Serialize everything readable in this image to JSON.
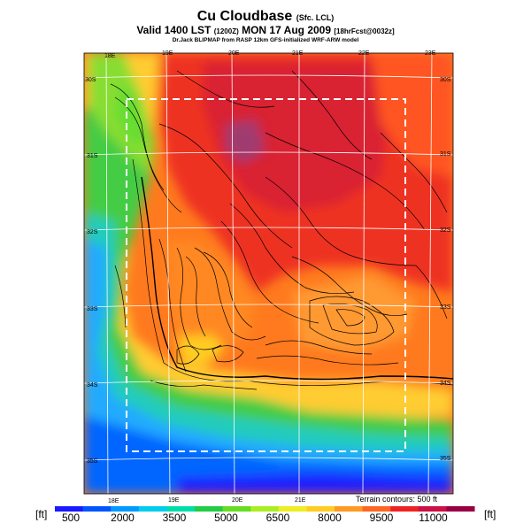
{
  "header": {
    "title": "Cu Cloudbase",
    "title_suffix": "(Sfc. LCL)",
    "valid_line": "Valid 1400 LST",
    "valid_z": "(1200Z)",
    "valid_date": "MON 17 Aug 2009",
    "forecast": "[18hrFcst@0032z]",
    "credit": "Dr.Jack BLIPMAP from RASP 12km GFS-initialized WRF-ARW model"
  },
  "map": {
    "lon_labels_top": [
      "18E",
      "19E",
      "20E",
      "21E",
      "22E",
      "23E"
    ],
    "lon_labels_bottom": [
      "18E",
      "19E",
      "20E",
      "21E"
    ],
    "lat_labels_left": [
      "30S",
      "31S",
      "32S",
      "33S",
      "34S",
      "35S"
    ],
    "lat_labels_right": [
      "30S",
      "31S",
      "32S",
      "33S",
      "34S",
      "35S"
    ],
    "terrain_note": "Terrain contours: 500 ft"
  },
  "colorbar": {
    "unit": "[ft]",
    "tick_labels": [
      "500",
      "2000",
      "3500",
      "5000",
      "6500",
      "8000",
      "9500",
      "11000"
    ],
    "colors": [
      "#1a1aff",
      "#0055ff",
      "#0099ff",
      "#00ccee",
      "#00ddaa",
      "#22cc44",
      "#66dd22",
      "#aaee22",
      "#eeee22",
      "#ffcc22",
      "#ff9922",
      "#ff6622",
      "#ee2222",
      "#cc1144",
      "#990044"
    ]
  }
}
